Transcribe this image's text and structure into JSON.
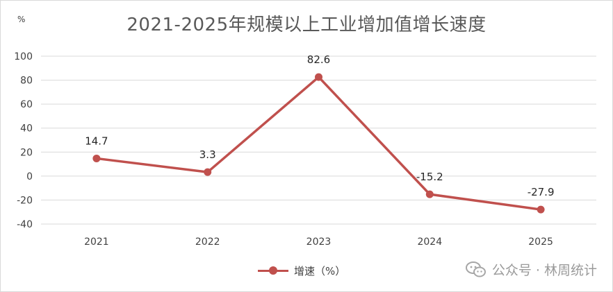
{
  "chart_data": {
    "type": "line",
    "title": "2021-2025年规模以上工业增加值增长速度",
    "unit_label": "%",
    "categories": [
      "2021",
      "2022",
      "2023",
      "2024",
      "2025"
    ],
    "series": [
      {
        "name": "增速（%）",
        "values": [
          14.7,
          3.3,
          82.6,
          -15.2,
          -27.9
        ],
        "color": "#c0504d"
      }
    ],
    "data_labels": [
      "14.7",
      "3.3",
      "82.6",
      "-15.2",
      "-27.9"
    ],
    "ylim": [
      -40,
      100
    ],
    "yticks": [
      100,
      80,
      60,
      40,
      20,
      0,
      -20,
      -40
    ],
    "grid": true,
    "legend_position": "bottom"
  },
  "watermark": {
    "text": "公众号 · 林周统计",
    "icon": "wechat-icon"
  }
}
